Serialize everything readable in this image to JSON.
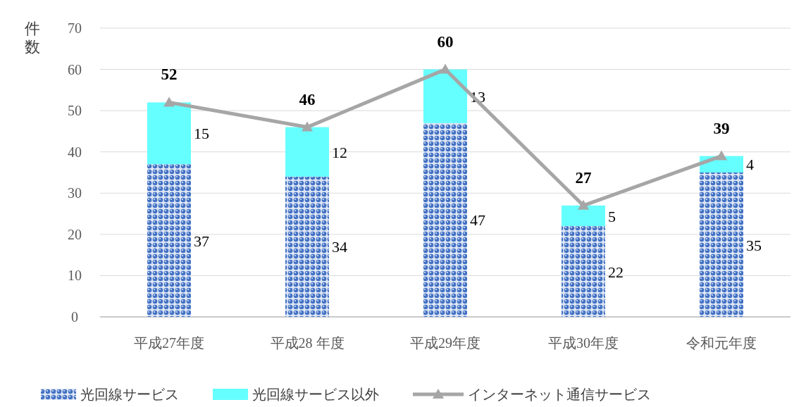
{
  "chart_data": {
    "type": "bar",
    "stacked": true,
    "ylabel": "件数",
    "categories": [
      "平成27年度",
      "平成28 年度",
      "平成29年度",
      "平成30年度",
      "令和元年度"
    ],
    "series": [
      {
        "name": "光回線サービス",
        "color": "#4472c4",
        "values": [
          37,
          34,
          47,
          22,
          35
        ]
      },
      {
        "name": "光回線サービス以外",
        "color": "#66ffff",
        "values": [
          15,
          12,
          13,
          5,
          4
        ]
      },
      {
        "name": "インターネット通信サービス",
        "type": "line",
        "color": "#a6a6a6",
        "values": [
          52,
          46,
          60,
          27,
          39
        ]
      }
    ],
    "ylim": [
      0,
      70
    ],
    "yticks": [
      0,
      10,
      20,
      30,
      40,
      50,
      60,
      70
    ],
    "grid": "y",
    "legend": "bottom",
    "marker": "triangle",
    "data_labels": true
  }
}
